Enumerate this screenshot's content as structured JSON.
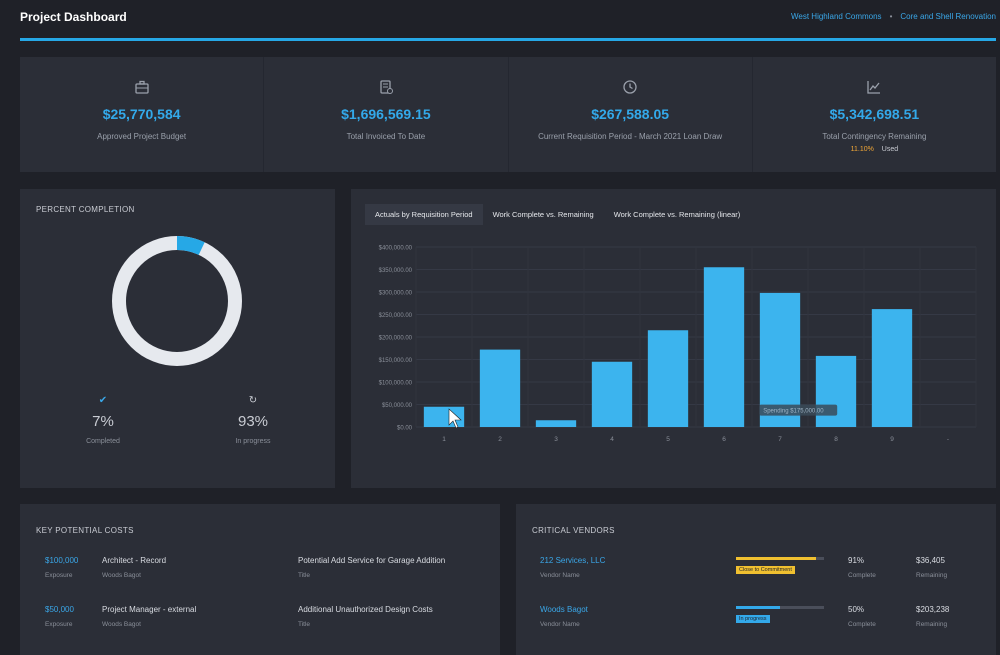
{
  "header": {
    "title": "Project Dashboard",
    "breadcrumbs": [
      "West Highland Commons",
      "Core and Shell Renovation"
    ]
  },
  "kpis": [
    {
      "icon": "briefcase-icon",
      "value": "$25,770,584",
      "label": "Approved Project Budget"
    },
    {
      "icon": "invoice-icon",
      "value": "$1,696,569.15",
      "label": "Total Invoiced To Date"
    },
    {
      "icon": "clock-icon",
      "value": "$267,588.05",
      "label": "Current Requisition Period - March 2021 Loan Draw"
    },
    {
      "icon": "line-chart-icon",
      "value": "$5,342,698.51",
      "label": "Total Contingency Remaining"
    }
  ],
  "contingency": {
    "percent": "11.10%",
    "label": "Used"
  },
  "percent_completion": {
    "title": "PERCENT COMPLETION",
    "completed_fraction": 0.07,
    "completed": {
      "value": "7%",
      "label": "Completed"
    },
    "in_progress": {
      "value": "93%",
      "label": "In progress"
    }
  },
  "chart_tabs": [
    "Actuals by Requisition Period",
    "Work Complete vs. Remaining",
    "Work Complete vs. Remaining (linear)"
  ],
  "chart_data": {
    "type": "bar",
    "categories": [
      "1",
      "2",
      "3",
      "4",
      "5",
      "6",
      "7",
      "8",
      "9",
      "-"
    ],
    "values": [
      45000,
      172000,
      15000,
      145000,
      215000,
      355000,
      298000,
      158000,
      262000,
      0
    ],
    "ylim": [
      0,
      400000
    ],
    "ytick_labels": [
      "$0.00",
      "$50,000.00",
      "$100,000.00",
      "$150,000.00",
      "$200,000.00",
      "$250,000.00",
      "$300,000.00",
      "$350,000.00",
      "$400,000.00"
    ],
    "grid": true,
    "annotation": "Spending $175,000.00"
  },
  "key_costs": {
    "title": "KEY POTENTIAL COSTS",
    "rows": [
      {
        "amount": "$100,000",
        "amount_label": "Exposure",
        "role": "Architect - Record",
        "name": "Woods Bagot",
        "title": "Potential Add Service for Garage Addition",
        "title_label": "Title"
      },
      {
        "amount": "$50,000",
        "amount_label": "Exposure",
        "role": "Project Manager - external",
        "name": "Woods Bagot",
        "title": "Additional Unauthorized Design Costs",
        "title_label": "Title"
      }
    ]
  },
  "vendors": {
    "title": "CRITICAL VENDORS",
    "rows": [
      {
        "name": "212 Services, LLC",
        "name_label": "Vendor Name",
        "progress": 0.91,
        "bar_color": "#f0c030",
        "badge": "Close to Commitment",
        "pct": "91%",
        "pct_label": "Complete",
        "remaining": "$36,405",
        "remaining_label": "Remaining"
      },
      {
        "name": "Woods Bagot",
        "name_label": "Vendor Name",
        "progress": 0.5,
        "bar_color": "#33a9ea",
        "badge": "In progress",
        "pct": "50%",
        "pct_label": "Complete",
        "remaining": "$203,238",
        "remaining_label": "Remaining"
      }
    ]
  },
  "colors": {
    "accent": "#26a8e6",
    "bar": "#3cb4ee",
    "warning": "#f0a637"
  }
}
